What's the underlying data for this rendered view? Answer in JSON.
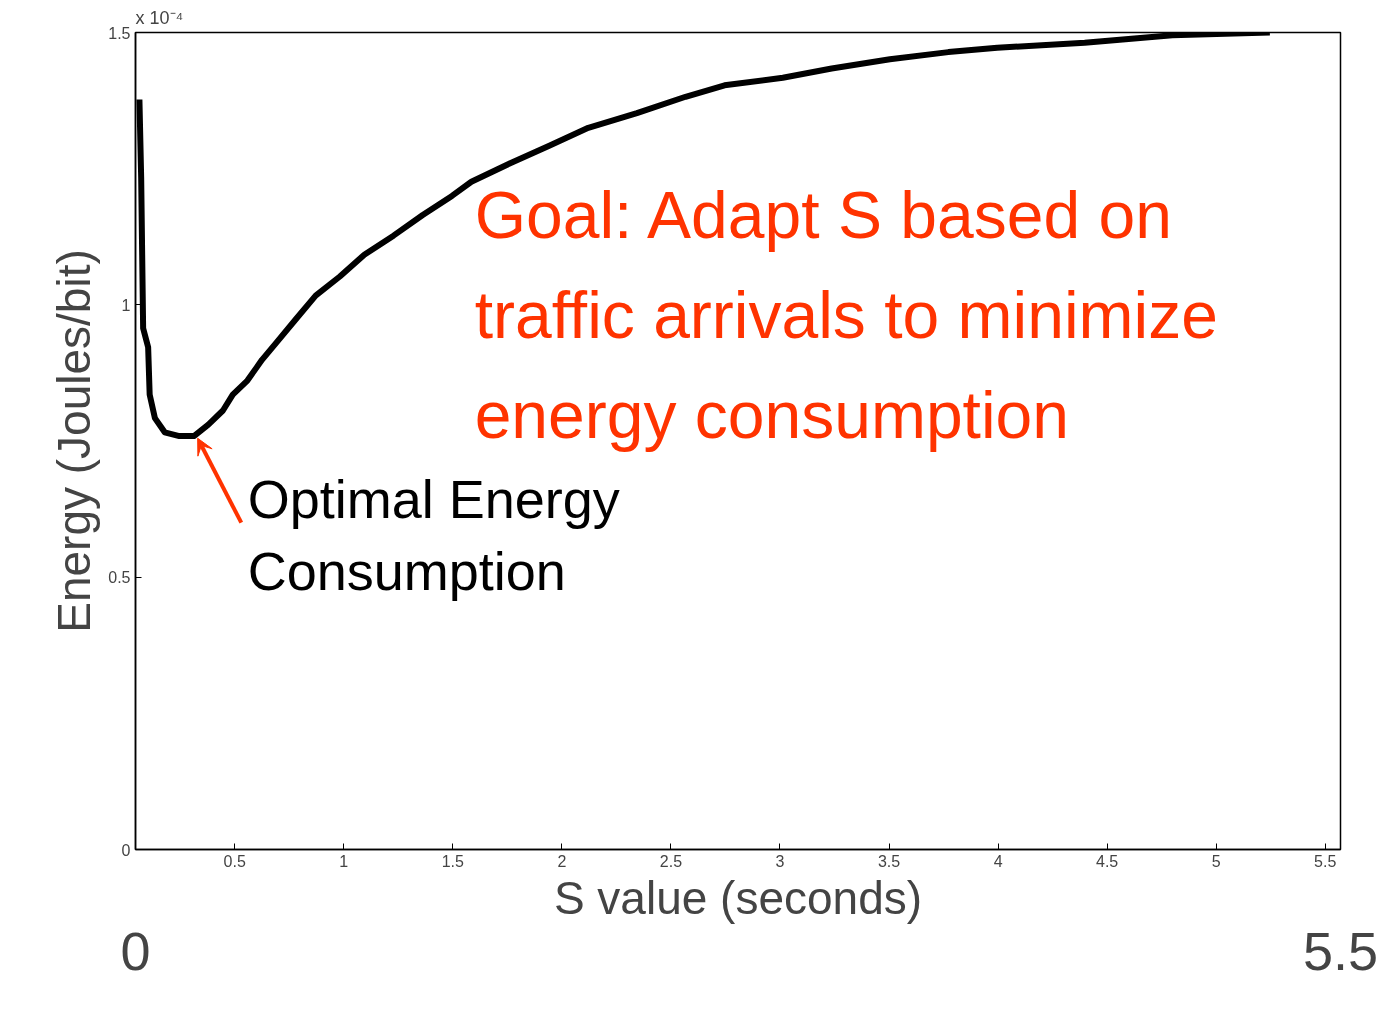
{
  "chart_data": {
    "type": "line",
    "xlabel": "S value (seconds)",
    "ylabel": "Energy (Joules/bit)",
    "x": [
      0.063,
      0.071,
      0.08,
      0.103,
      0.11,
      0.134,
      0.179,
      0.246,
      0.313,
      0.379,
      0.446,
      0.491,
      0.558,
      0.625,
      0.692,
      0.781,
      0.871,
      0.982,
      1.094,
      1.228,
      1.362,
      1.496,
      1.585,
      1.763,
      1.942,
      2.121,
      2.344,
      2.567,
      2.746,
      3.013,
      3.237,
      3.504,
      3.772,
      3.996,
      4.397,
      4.799,
      5.246
    ],
    "series": [
      {
        "color": "#000000",
        "values": [
          1.377,
          1.234,
          0.957,
          0.922,
          0.835,
          0.792,
          0.766,
          0.759,
          0.759,
          0.78,
          0.806,
          0.835,
          0.861,
          0.899,
          0.931,
          0.974,
          1.017,
          1.052,
          1.092,
          1.127,
          1.165,
          1.2,
          1.226,
          1.26,
          1.292,
          1.325,
          1.352,
          1.382,
          1.403,
          1.417,
          1.434,
          1.451,
          1.464,
          1.472,
          1.481,
          1.495,
          1.5
        ]
      }
    ],
    "xlim": [
      0.045,
      5.57
    ],
    "ylim": [
      0,
      1.5
    ],
    "xticks": [
      0.5,
      1,
      1.5,
      2,
      2.5,
      3,
      3.5,
      4,
      4.5,
      5,
      5.5
    ],
    "yticks": [
      0,
      0.5,
      1,
      1.5
    ],
    "annotations": [
      "x 10⁻⁴",
      "Goal: Adapt S based on\ntraffic arrivals to minimize\nenergy consumption",
      {
        "text": "Optimal Energy\n  Consumption",
        "x": 0.33,
        "y": 0.76
      },
      "0",
      "5.5"
    ],
    "grid": false,
    "marker": "none",
    "line_style": "solid"
  }
}
